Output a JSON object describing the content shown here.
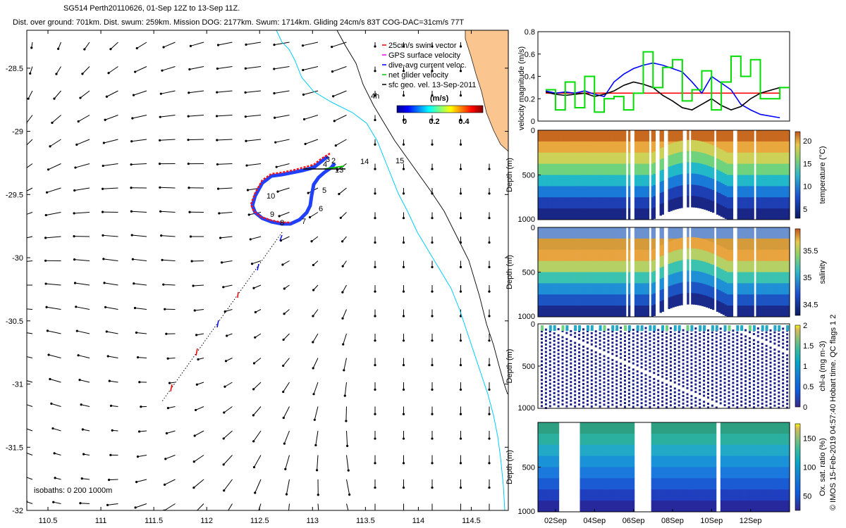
{
  "header": {
    "title_line1": "SG514 Perth20110626, 01-Sep 12Z to 13-Sep 11Z.",
    "title_line2": "Dist. over ground: 701km. Dist. swum: 259km. Mission DOG: 2177km. Swum: 1714km. Gliding 24cm/s 83T COG-DAC=31cm/s 77T"
  },
  "credit": "© IMOS 15-Feb-2019 04:57:40 Hobart time. QC flags 1 2",
  "map": {
    "x_ticks": [
      "110.5",
      "111",
      "111.5",
      "112",
      "112.5",
      "113",
      "113.5",
      "114",
      "114.5"
    ],
    "y_ticks": [
      "-28.5",
      "-29",
      "-29.5",
      "-30",
      "-30.5",
      "-31",
      "-31.5",
      "-32"
    ],
    "xlim": [
      110.3,
      114.85
    ],
    "ylim": [
      -32.0,
      -28.2
    ],
    "legend": [
      {
        "label": "25cm/s swim vector",
        "color": "#ff0000"
      },
      {
        "label": "GPS surface velocity",
        "color": "#ff00ff"
      },
      {
        "label": "dive-avg current veloc.",
        "color": "#0000ff"
      },
      {
        "label": "net glider velocity",
        "color": "#00cc00"
      },
      {
        "label": "sfc geo. vel. 13-Sep-2011",
        "color": "#000000"
      }
    ],
    "colorbar_label": "(m/s)",
    "colorbar_ticks": [
      "0",
      "0.2",
      "0.4"
    ],
    "isobaths_label": "isobaths: 0   200  1000m",
    "day_labels": [
      "2",
      "3",
      "4",
      "5",
      "6",
      "7",
      "8",
      "9",
      "10",
      "13",
      "14",
      "15"
    ],
    "colors": {
      "land": "#fbc590",
      "coast": "#00ccff",
      "isobath": "#000000",
      "track": "#0000ff",
      "glider": "#ff0000"
    }
  },
  "chart_data": [
    {
      "type": "line",
      "title": "",
      "ylabel": "velocity magnitude (m/s)",
      "ylim": [
        0,
        0.8
      ],
      "yticks": [
        "0",
        "0.2",
        "0.4",
        "0.6",
        "0.8"
      ],
      "x": [
        1.5,
        2,
        2.5,
        3,
        3.5,
        4,
        4.5,
        5,
        5.5,
        6,
        6.5,
        7,
        7.5,
        8,
        8.5,
        9,
        9.5,
        10,
        10.5,
        11,
        11.5,
        12,
        12.5,
        13.5
      ],
      "series": [
        {
          "color": "#ff0000",
          "values": [
            0.25,
            0.25,
            0.25,
            0.25,
            0.25,
            0.25,
            0.25,
            0.25,
            0.25,
            0.25,
            0.25,
            0.25,
            0.25,
            0.25,
            0.25,
            0.25,
            0.25,
            0.25,
            0.25,
            0.25,
            0.25,
            0.25,
            0.25,
            0.25
          ]
        },
        {
          "color": "#0000ff",
          "values": [
            0.27,
            0.25,
            0.26,
            0.25,
            0.27,
            0.24,
            0.22,
            0.35,
            0.42,
            0.47,
            0.5,
            0.52,
            0.5,
            0.47,
            0.44,
            0.35,
            0.25,
            0.4,
            0.34,
            0.28,
            0.15,
            0.1,
            0.06,
            0.03
          ]
        },
        {
          "color": "#000000",
          "values": [
            0.26,
            0.24,
            0.23,
            0.24,
            0.25,
            0.22,
            0.24,
            0.27,
            0.32,
            0.35,
            0.33,
            0.3,
            0.23,
            0.18,
            0.12,
            0.1,
            0.15,
            0.2,
            0.14,
            0.1,
            0.13,
            0.2,
            0.25,
            0.3
          ]
        },
        {
          "color": "#00dd00",
          "values": [
            0.28,
            0.1,
            0.35,
            0.12,
            0.4,
            0.08,
            0.2,
            0.22,
            0.1,
            0.25,
            0.62,
            0.3,
            0.48,
            0.55,
            0.18,
            0.28,
            0.45,
            0.1,
            0.35,
            0.58,
            0.4,
            0.55,
            0.2,
            0.3
          ]
        }
      ]
    },
    {
      "type": "heatmap",
      "ylabel": "Depth (m)",
      "cbar_label": "temperature (°C)",
      "ylim": [
        1000,
        0
      ],
      "yticks": [
        "0",
        "500",
        "1000"
      ],
      "cbar_ticks": [
        "5",
        "10",
        "15",
        "20"
      ],
      "cbar_range": [
        3,
        22
      ]
    },
    {
      "type": "heatmap",
      "ylabel": "Depth (m)",
      "cbar_label": "salinity",
      "ylim": [
        1000,
        0
      ],
      "yticks": [
        "0",
        "500",
        "1000"
      ],
      "cbar_ticks": [
        "34.5",
        "35",
        "35.5"
      ],
      "cbar_range": [
        34.3,
        35.9
      ]
    },
    {
      "type": "scatter",
      "ylabel": "Depth (m)",
      "cbar_label": "chl-a (mg m-3)",
      "ylim": [
        1000,
        0
      ],
      "yticks": [
        "0",
        "500",
        "1000"
      ],
      "cbar_ticks": [
        "0",
        "0.5",
        "1",
        "1.5",
        "2"
      ],
      "cbar_range": [
        0,
        2
      ]
    },
    {
      "type": "heatmap",
      "ylabel": "Depth (m)",
      "cbar_label": "Ox. sat. ratio (%)",
      "ylim": [
        1000,
        0
      ],
      "yticks": [
        "500",
        "1000"
      ],
      "cbar_ticks": [
        "50",
        "100",
        "150"
      ],
      "cbar_range": [
        25,
        175
      ],
      "xticks": [
        "02Sep",
        "04Sep",
        "06Sep",
        "08Sep",
        "10Sep",
        "12Sep"
      ]
    }
  ]
}
